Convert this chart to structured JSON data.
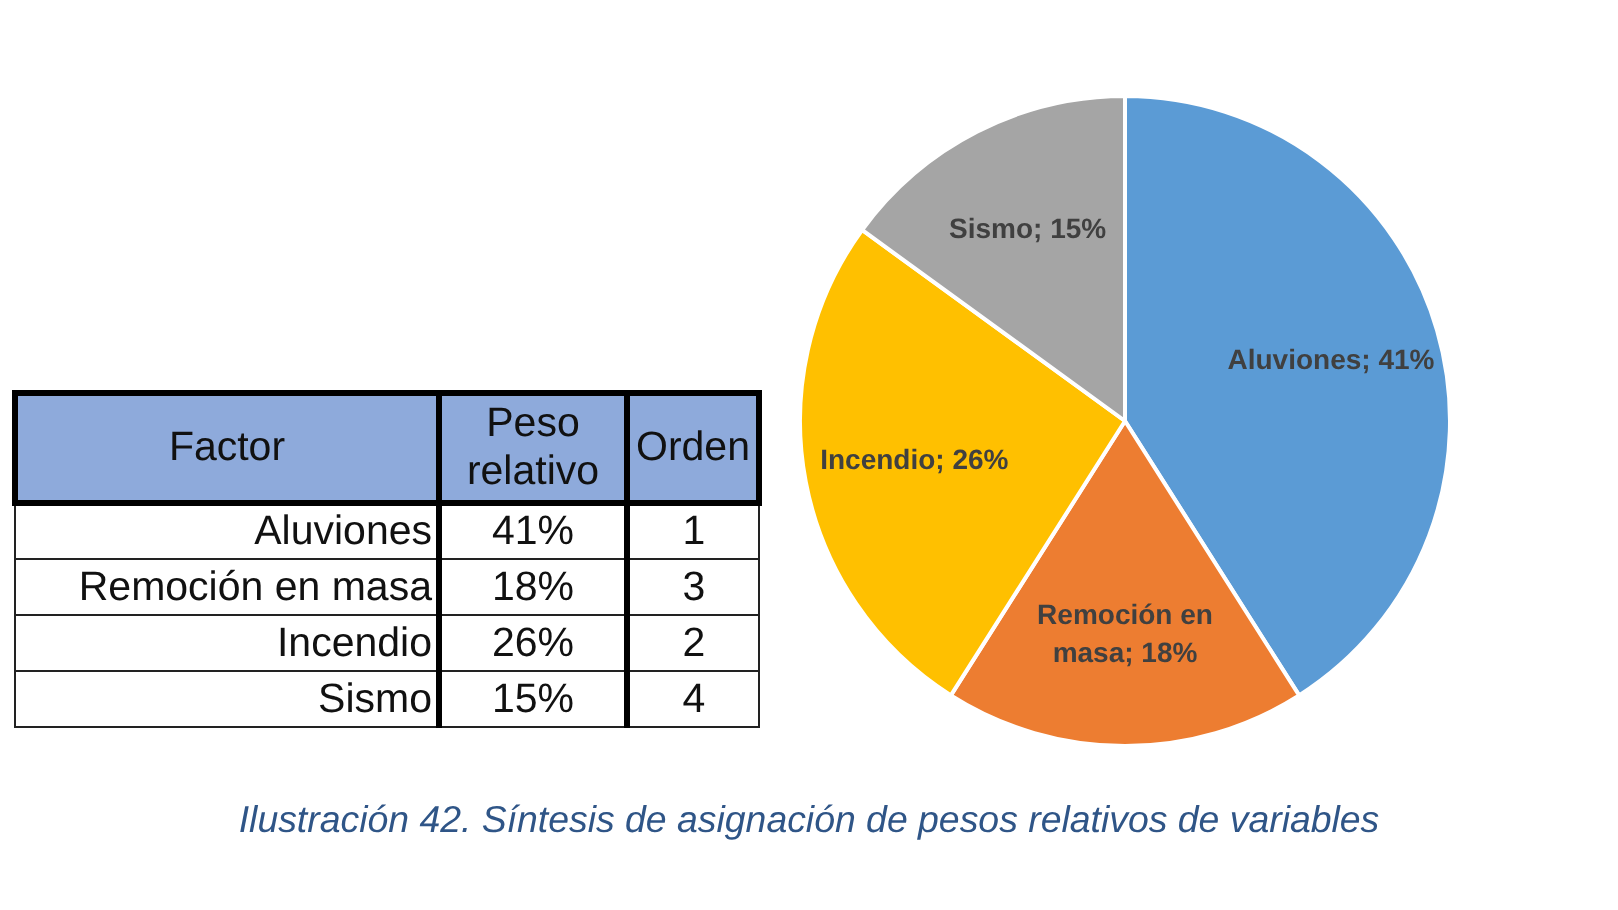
{
  "chart_data": [
    {
      "type": "other",
      "annotations": [
        "Factor",
        "Peso relativo",
        "Orden",
        "Aluviones",
        "41%",
        "1",
        "Remoción en masa",
        "18%",
        "3",
        "Incendio",
        "26%",
        "2",
        "Sismo",
        "15%",
        "4"
      ]
    },
    {
      "type": "pie",
      "categories": [
        "Aluviones",
        "Remoción en masa",
        "Incendio",
        "Sismo"
      ],
      "values": [
        41,
        18,
        26,
        15
      ],
      "colors": [
        "#5b9bd5",
        "#ed7d31",
        "#ffc000",
        "#a5a5a5"
      ],
      "value_labels": [
        "41%",
        "18%",
        "26%",
        "15%"
      ],
      "annotations": [
        "Ilustración 42. Síntesis de asignación de pesos relativos de variables"
      ]
    }
  ]
}
